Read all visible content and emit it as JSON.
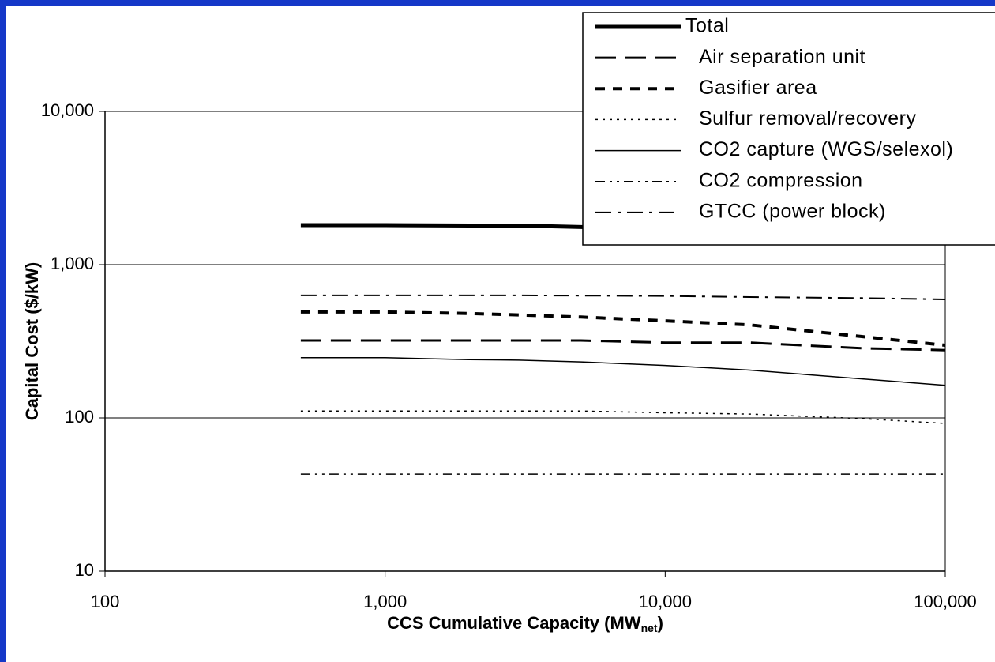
{
  "chart_data": {
    "type": "line",
    "xlabel": {
      "text": "CCS Cumulative Capacity (MW",
      "subscript": "net",
      "suffix": ")"
    },
    "ylabel": "Capital Cost ($/kW)",
    "x": [
      500,
      1000,
      2000,
      3000,
      5000,
      10000,
      20000,
      50000,
      100000
    ],
    "series": [
      {
        "name": "Total",
        "color": "#000000",
        "style": "thick",
        "values": [
          1810,
          1810,
          1800,
          1800,
          1760,
          1700,
          1650,
          1530,
          1430
        ]
      },
      {
        "name": "Air separation unit",
        "color": "#000000",
        "style": "long-dash",
        "values": [
          320,
          320,
          320,
          320,
          320,
          310,
          310,
          285,
          277
        ]
      },
      {
        "name": "Gasifier area",
        "color": "#000000",
        "style": "dash",
        "values": [
          491,
          491,
          480,
          470,
          455,
          430,
          405,
          340,
          298
        ]
      },
      {
        "name": "Sulfur removal/recovery",
        "color": "#000000",
        "style": "dot",
        "values": [
          111,
          111,
          111,
          111,
          111,
          108,
          106,
          99,
          92
        ]
      },
      {
        "name": "CO2 capture (WGS/selexol)",
        "color": "#000000",
        "style": "solid",
        "values": [
          247,
          247,
          240,
          238,
          232,
          220,
          205,
          180,
          163
        ]
      },
      {
        "name": "CO2 compression",
        "color": "#000000",
        "style": "dash-dot-dot",
        "values": [
          43,
          43,
          43,
          43,
          43,
          43,
          43,
          43,
          43
        ]
      },
      {
        "name": "GTCC (power block)",
        "color": "#000000",
        "style": "dash-dot",
        "values": [
          630,
          630,
          630,
          630,
          628,
          625,
          615,
          605,
          593
        ]
      }
    ],
    "xscale": "log",
    "yscale": "log",
    "xlim": [
      100,
      100000
    ],
    "ylim": [
      10,
      10000
    ],
    "xticks": [
      100,
      {
        "value": 1000,
        "label": "1,000"
      },
      {
        "value": 10000,
        "label": "10,000"
      },
      {
        "value": 100000,
        "label": "100,000"
      }
    ],
    "yticks": [
      10,
      100,
      {
        "value": 1000,
        "label": "1,000"
      },
      {
        "value": 10000,
        "label": "10,000"
      }
    ],
    "grid": true,
    "legend": "top-right"
  }
}
